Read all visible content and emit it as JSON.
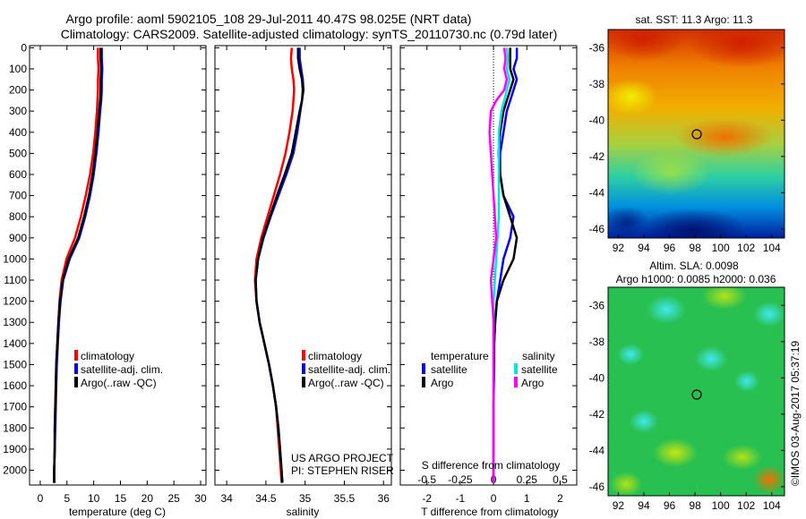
{
  "header": {
    "line1": "Argo profile: aoml 5902105_108 29-Jul-2011 40.47S 98.025E (NRT data)",
    "line2": "Climatology: CARS2009. Satellite-adjusted climatology: synTS_20110730.nc (0.79d later)"
  },
  "colors": {
    "climatology": "#ff0000",
    "satellite": "#0000ff",
    "argo": "#000000",
    "sat_sal": "#00e5e5",
    "argo_sal": "#ff00ff"
  },
  "depth_ticks": [
    "0",
    "100",
    "200",
    "300",
    "400",
    "500",
    "600",
    "700",
    "800",
    "900",
    "1000",
    "1100",
    "1200",
    "1300",
    "1400",
    "1500",
    "1600",
    "1700",
    "1800",
    "1900",
    "2000"
  ],
  "legend": {
    "climatology": "climatology",
    "satellite": "satellite-adj. clim.",
    "argo": "Argo(..raw -QC)"
  },
  "diff_legend": {
    "temperature": "temperature",
    "salinity": "salinity",
    "satellite": "satellite",
    "argo": "Argo"
  },
  "credits": {
    "project": "US ARGO PROJECT",
    "pi": "PI: STEPHEN RISER"
  },
  "maps": {
    "sst_title": "sat. SST: 11.3 Argo: 11.3",
    "sla_title1": "Altim. SLA: 0.0098",
    "sla_title2": "Argo h1000: 0.0085 h2000: 0.036",
    "lat_ticks": [
      "-36",
      "-38",
      "-40",
      "-42",
      "-44",
      "-46"
    ],
    "lon_ticks": [
      "92",
      "94",
      "96",
      "98",
      "100",
      "102",
      "104"
    ]
  },
  "stamp": "©IMOS 03-Aug-2017 05:37:19",
  "chart_data": [
    {
      "type": "line",
      "title": "",
      "xlabel": "temperature (deg C)",
      "ylabel": "depth",
      "xlim": [
        -2,
        31
      ],
      "ylim": [
        2070,
        -10
      ],
      "xticks": [
        "0",
        "5",
        "10",
        "15",
        "20",
        "25",
        "30"
      ],
      "depth": [
        0,
        50,
        100,
        150,
        200,
        250,
        300,
        400,
        500,
        600,
        700,
        800,
        900,
        1000,
        1100,
        1200,
        1300,
        1400,
        1500,
        1600,
        1700,
        1800,
        1900,
        2000,
        2060
      ],
      "series": [
        {
          "name": "climatology",
          "values": [
            10.8,
            10.8,
            10.9,
            10.8,
            10.8,
            10.7,
            10.6,
            10.3,
            9.9,
            9.3,
            8.5,
            7.6,
            6.5,
            4.9,
            4.0,
            3.6,
            3.4,
            3.2,
            3.0,
            2.9,
            2.8,
            2.7,
            2.7,
            2.6,
            2.6
          ]
        },
        {
          "name": "satellite-adj. clim.",
          "values": [
            11.5,
            11.5,
            11.6,
            11.5,
            11.5,
            11.4,
            11.2,
            10.9,
            10.5,
            10.0,
            9.3,
            8.4,
            7.3,
            5.5,
            4.3,
            3.8,
            3.5,
            3.3,
            3.1,
            3.0,
            2.9,
            2.8,
            2.7,
            2.6,
            2.6
          ]
        },
        {
          "name": "Argo",
          "values": [
            11.3,
            11.3,
            11.4,
            11.3,
            11.3,
            11.2,
            11.0,
            10.7,
            10.3,
            9.8,
            9.1,
            8.2,
            7.1,
            5.3,
            4.2,
            3.7,
            3.4,
            3.2,
            3.0,
            2.9,
            2.8,
            2.7,
            2.7,
            2.6,
            2.6
          ]
        }
      ]
    },
    {
      "type": "line",
      "title": "",
      "xlabel": "salinity",
      "ylabel": "depth",
      "xlim": [
        33.85,
        36.1
      ],
      "ylim": [
        2070,
        -10
      ],
      "xticks": [
        "34",
        "34.5",
        "35",
        "35.5",
        "36"
      ],
      "depth": [
        0,
        50,
        100,
        150,
        200,
        250,
        300,
        400,
        500,
        600,
        700,
        800,
        900,
        1000,
        1100,
        1200,
        1300,
        1400,
        1500,
        1600,
        1700,
        1800,
        1900,
        2000,
        2060
      ],
      "series": [
        {
          "name": "climatology",
          "values": [
            34.83,
            34.82,
            34.83,
            34.85,
            34.86,
            34.85,
            34.84,
            34.8,
            34.75,
            34.68,
            34.6,
            34.52,
            34.44,
            34.38,
            34.36,
            34.38,
            34.42,
            34.48,
            34.54,
            34.59,
            34.63,
            34.65,
            34.67,
            34.69,
            34.7
          ]
        },
        {
          "name": "satellite-adj. clim.",
          "values": [
            34.93,
            34.93,
            34.95,
            34.97,
            34.98,
            34.96,
            34.94,
            34.9,
            34.85,
            34.76,
            34.66,
            34.56,
            34.47,
            34.4,
            34.37,
            34.38,
            34.42,
            34.48,
            34.54,
            34.59,
            34.63,
            34.66,
            34.68,
            34.7,
            34.71
          ]
        },
        {
          "name": "Argo",
          "values": [
            34.91,
            34.91,
            34.93,
            34.96,
            34.97,
            34.96,
            34.93,
            34.88,
            34.83,
            34.74,
            34.64,
            34.55,
            34.46,
            34.4,
            34.37,
            34.38,
            34.42,
            34.48,
            34.54,
            34.59,
            34.63,
            34.66,
            34.68,
            34.7,
            34.71
          ]
        }
      ]
    },
    {
      "type": "line",
      "title": "",
      "xlabel": "T difference from climatology",
      "xlabel_top": "S difference from climatology",
      "ylabel": "depth",
      "xlim": [
        -2.8,
        2.5
      ],
      "ylim": [
        2070,
        -10
      ],
      "xticks": [
        "-2",
        "-1",
        "0",
        "1",
        "2"
      ],
      "xticks_sal": [
        "-0.5",
        "-0.25",
        "0",
        "0.25",
        "0.5"
      ],
      "depth": [
        0,
        50,
        100,
        150,
        200,
        250,
        300,
        400,
        500,
        600,
        700,
        800,
        900,
        1000,
        1100,
        1200,
        1300,
        1400,
        1500,
        1600,
        1700,
        1800,
        1900,
        2000,
        2060
      ],
      "series": [
        {
          "name": "temperature satellite",
          "values": [
            0.7,
            0.7,
            0.6,
            0.7,
            0.6,
            0.5,
            0.4,
            0.3,
            0.2,
            0.2,
            0.3,
            0.6,
            0.5,
            0.3,
            0.2,
            0.1,
            0.05,
            0.02,
            0.02,
            0.01,
            0.0,
            0.0,
            0.0,
            0.0,
            0.0
          ]
        },
        {
          "name": "temperature Argo",
          "values": [
            0.5,
            0.5,
            0.5,
            0.6,
            0.5,
            0.4,
            0.3,
            0.2,
            0.15,
            0.2,
            0.3,
            0.5,
            0.7,
            0.6,
            0.3,
            0.1,
            0.05,
            0.02,
            0.02,
            0.01,
            0.0,
            0.0,
            0.0,
            0.0,
            0.0
          ]
        },
        {
          "name": "salinity satellite",
          "values": [
            0.1,
            0.11,
            0.1,
            0.12,
            0.1,
            0.08,
            0.06,
            0.04,
            0.04,
            0.04,
            0.04,
            0.04,
            0.03,
            0.02,
            0.01,
            0.0,
            0.0,
            0.0,
            0.0,
            0.0,
            0.0,
            0.0,
            0.0,
            0.0,
            0.0
          ]
        },
        {
          "name": "salinity Argo",
          "values": [
            0.08,
            0.09,
            0.08,
            0.1,
            0.08,
            0.02,
            -0.02,
            -0.03,
            -0.02,
            -0.01,
            0.0,
            0.01,
            0.02,
            0.0,
            -0.02,
            -0.01,
            0.0,
            0.0,
            0.0,
            0.0,
            0.0,
            0.0,
            0.0,
            0.0,
            0.0
          ]
        }
      ]
    }
  ]
}
